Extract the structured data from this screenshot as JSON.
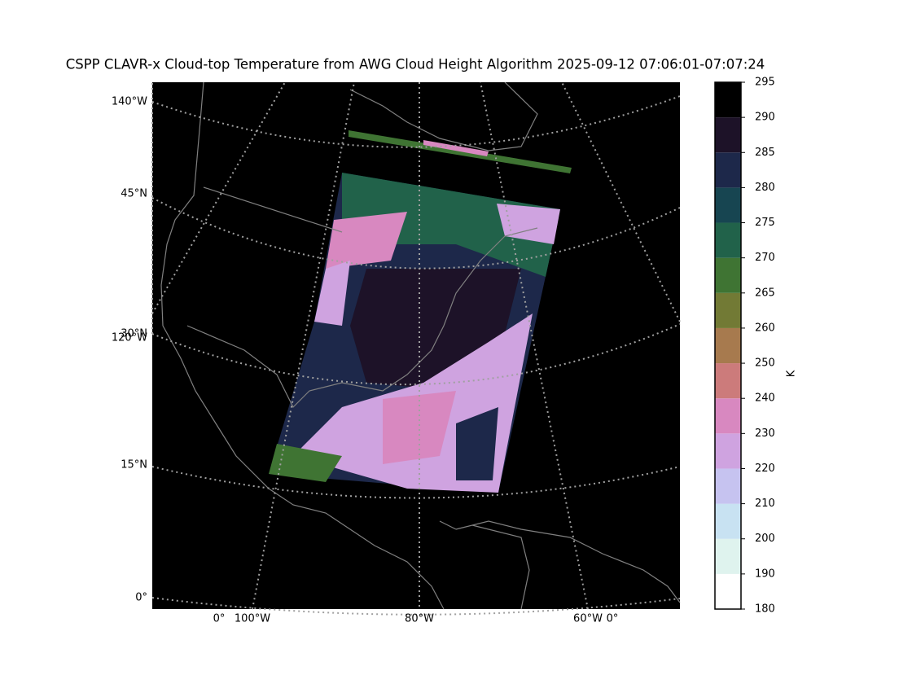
{
  "title": "CSPP CLAVR-x Cloud-top Temperature from AWG Cloud Height Algorithm 2025-09-12 07:06:01-07:07:24",
  "map": {
    "left_labels": [
      "140°W",
      "45°N",
      "30°N",
      "120°W",
      "15°N",
      "0°"
    ],
    "bottom_labels": [
      "0°",
      "100°W",
      "80°W",
      "60°W",
      "0°"
    ]
  },
  "colorbar": {
    "label": "K",
    "ticks": [
      180,
      190,
      200,
      210,
      220,
      230,
      240,
      250,
      260,
      265,
      270,
      275,
      280,
      285,
      290,
      295
    ],
    "colors": [
      "#ffffff",
      "#dff3ee",
      "#c8e2f2",
      "#c6c3f0",
      "#cfa3e0",
      "#d888c0",
      "#cc7b7b",
      "#a77a4e",
      "#727a35",
      "#3f7433",
      "#21624a",
      "#174551",
      "#1d284a",
      "#1d1228",
      "#000000"
    ]
  }
}
